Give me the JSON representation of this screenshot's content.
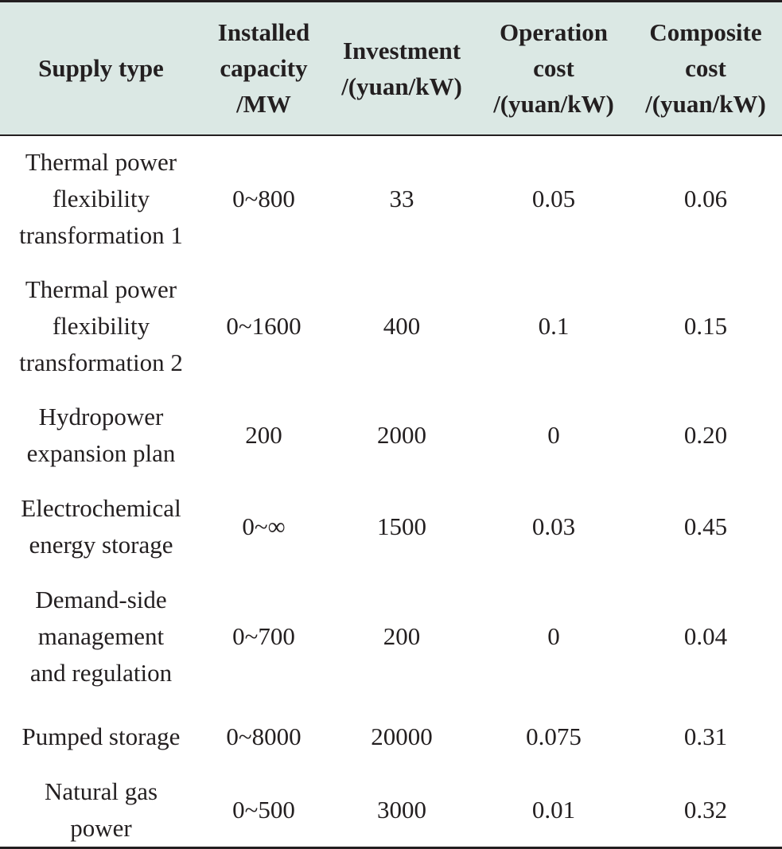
{
  "table": {
    "headers": [
      "Supply type",
      "Installed\ncapacity\n/MW",
      "Investment\n/(yuan/kW)",
      "Operation\ncost\n/(yuan/kW)",
      "Composite\ncost\n/(yuan/kW)"
    ],
    "rows": [
      [
        "Thermal power\nflexibility\ntransformation 1",
        "0~800",
        "33",
        "0.05",
        "0.06"
      ],
      [
        "Thermal power\nflexibility\ntransformation 2",
        "0~1600",
        "400",
        "0.1",
        "0.15"
      ],
      [
        "Hydropower\nexpansion plan",
        "200",
        "2000",
        "0",
        "0.20"
      ],
      [
        "Electrochemical\nenergy storage",
        "0~∞",
        "1500",
        "0.03",
        "0.45"
      ],
      [
        "Demand-side\nmanagement\nand regulation",
        "0~700",
        "200",
        "0",
        "0.04"
      ],
      [
        "Pumped storage",
        "0~8000",
        "20000",
        "0.075",
        "0.31"
      ],
      [
        "Natural gas\npower",
        "0~500",
        "3000",
        "0.01",
        "0.32"
      ]
    ]
  },
  "colors": {
    "header_background": "#dbe8e4",
    "rule": "#231f20",
    "text": "#231f20"
  }
}
